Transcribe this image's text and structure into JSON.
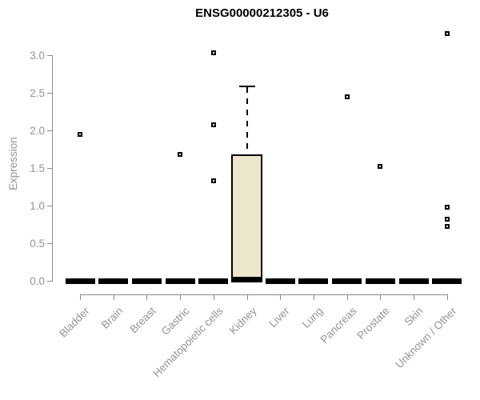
{
  "chart_data": {
    "type": "boxplot",
    "title": "ENSG00000212305 - U6",
    "ylabel": "Expression",
    "xlabel": "",
    "ylim": [
      0.0,
      3.3
    ],
    "yticks": [
      "0.0",
      "0.5",
      "1.0",
      "1.5",
      "2.0",
      "2.5",
      "3.0"
    ],
    "grid": false,
    "legend": null,
    "categories": [
      "Bladder",
      "Brain",
      "Breast",
      "Gastric",
      "Hematopoietic cells",
      "Kidney",
      "Liver",
      "Lung",
      "Pancreas",
      "Prostate",
      "Skin",
      "Unknown / Other"
    ],
    "boxes": [
      {
        "category": "Bladder",
        "q1": 0,
        "median": 0,
        "q3": 0,
        "whisker_low": 0,
        "whisker_high": 0,
        "outliers": [
          1.95
        ]
      },
      {
        "category": "Brain",
        "q1": 0,
        "median": 0,
        "q3": 0,
        "whisker_low": 0,
        "whisker_high": 0,
        "outliers": []
      },
      {
        "category": "Breast",
        "q1": 0,
        "median": 0,
        "q3": 0,
        "whisker_low": 0,
        "whisker_high": 0,
        "outliers": []
      },
      {
        "category": "Gastric",
        "q1": 0,
        "median": 0,
        "q3": 0,
        "whisker_low": 0,
        "whisker_high": 0,
        "outliers": [
          1.68
        ]
      },
      {
        "category": "Hematopoietic cells",
        "q1": 0,
        "median": 0,
        "q3": 0,
        "whisker_low": 0,
        "whisker_high": 0,
        "outliers": [
          3.03,
          2.07,
          1.33
        ]
      },
      {
        "category": "Kidney",
        "q1": 0,
        "median": 0.02,
        "q3": 1.68,
        "whisker_low": 0,
        "whisker_high": 2.6,
        "outliers": []
      },
      {
        "category": "Liver",
        "q1": 0,
        "median": 0,
        "q3": 0,
        "whisker_low": 0,
        "whisker_high": 0,
        "outliers": []
      },
      {
        "category": "Lung",
        "q1": 0,
        "median": 0,
        "q3": 0,
        "whisker_low": 0,
        "whisker_high": 0,
        "outliers": []
      },
      {
        "category": "Pancreas",
        "q1": 0,
        "median": 0,
        "q3": 0,
        "whisker_low": 0,
        "whisker_high": 0,
        "outliers": [
          2.45
        ]
      },
      {
        "category": "Prostate",
        "q1": 0,
        "median": 0,
        "q3": 0,
        "whisker_low": 0,
        "whisker_high": 0,
        "outliers": [
          1.52
        ]
      },
      {
        "category": "Skin",
        "q1": 0,
        "median": 0,
        "q3": 0,
        "whisker_low": 0,
        "whisker_high": 0,
        "outliers": []
      },
      {
        "category": "Unknown / Other",
        "q1": 0,
        "median": 0,
        "q3": 0,
        "whisker_low": 0,
        "whisker_high": 0,
        "outliers": [
          3.29,
          0.98,
          0.82,
          0.72
        ]
      }
    ],
    "colors": {
      "box_fill": "#ece7cb",
      "box_border": "#000000",
      "flat_bar": "#000000",
      "outlier": "#000000",
      "axis": "#8b8b8b",
      "tick_label": "#949494",
      "title": "#000000"
    }
  }
}
